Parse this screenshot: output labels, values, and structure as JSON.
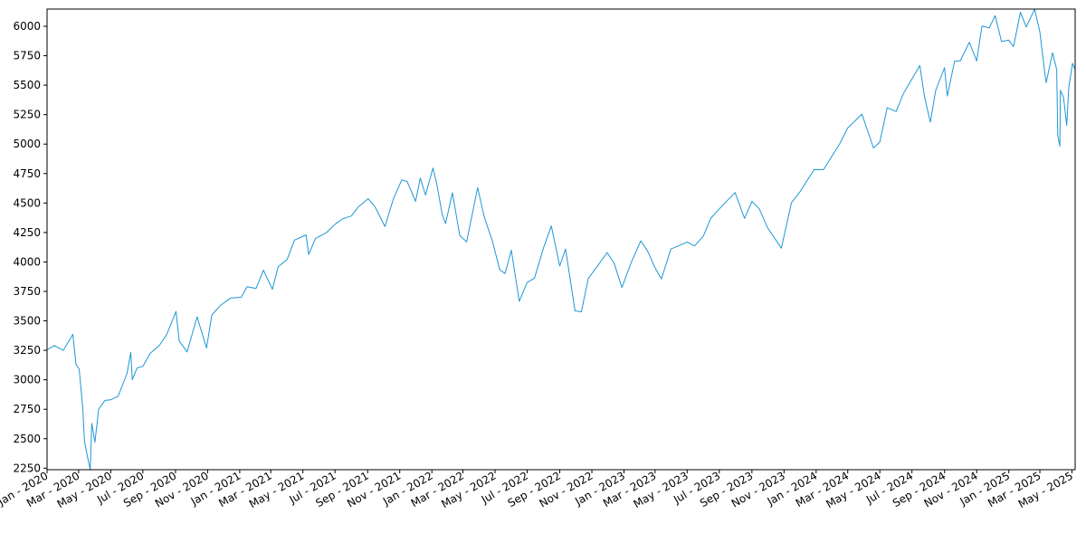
{
  "chart_data": {
    "type": "line",
    "title": "",
    "xlabel": "",
    "ylabel": "",
    "grid": false,
    "legend": "none",
    "color": "#1f96d6",
    "xlim": [
      "2020-01-01",
      "2025-05-07"
    ],
    "ylim": [
      2237,
      6146
    ],
    "yticks": [
      2250,
      2500,
      2750,
      3000,
      3250,
      3500,
      3750,
      4000,
      4250,
      4500,
      4750,
      5000,
      5250,
      5500,
      5750,
      6000
    ],
    "xticks": [
      {
        "date": "2020-01-01",
        "label": "Jan - 2020"
      },
      {
        "date": "2020-03-01",
        "label": "Mar - 2020"
      },
      {
        "date": "2020-05-01",
        "label": "May - 2020"
      },
      {
        "date": "2020-07-01",
        "label": "Jul - 2020"
      },
      {
        "date": "2020-09-01",
        "label": "Sep - 2020"
      },
      {
        "date": "2020-11-01",
        "label": "Nov - 2020"
      },
      {
        "date": "2021-01-01",
        "label": "Jan - 2021"
      },
      {
        "date": "2021-03-01",
        "label": "Mar - 2021"
      },
      {
        "date": "2021-05-01",
        "label": "May - 2021"
      },
      {
        "date": "2021-07-01",
        "label": "Jul - 2021"
      },
      {
        "date": "2021-09-01",
        "label": "Sep - 2021"
      },
      {
        "date": "2021-11-01",
        "label": "Nov - 2021"
      },
      {
        "date": "2022-01-01",
        "label": "Jan - 2022"
      },
      {
        "date": "2022-03-01",
        "label": "Mar - 2022"
      },
      {
        "date": "2022-05-01",
        "label": "May - 2022"
      },
      {
        "date": "2022-07-01",
        "label": "Jul - 2022"
      },
      {
        "date": "2022-09-01",
        "label": "Sep - 2022"
      },
      {
        "date": "2022-11-01",
        "label": "Nov - 2022"
      },
      {
        "date": "2023-01-01",
        "label": "Jan - 2023"
      },
      {
        "date": "2023-03-01",
        "label": "Mar - 2023"
      },
      {
        "date": "2023-05-01",
        "label": "May - 2023"
      },
      {
        "date": "2023-07-01",
        "label": "Jul - 2023"
      },
      {
        "date": "2023-09-01",
        "label": "Sep - 2023"
      },
      {
        "date": "2023-11-01",
        "label": "Nov - 2023"
      },
      {
        "date": "2024-01-01",
        "label": "Jan - 2024"
      },
      {
        "date": "2024-03-01",
        "label": "Mar - 2024"
      },
      {
        "date": "2024-05-01",
        "label": "May - 2024"
      },
      {
        "date": "2024-07-01",
        "label": "Jul - 2024"
      },
      {
        "date": "2024-09-01",
        "label": "Sep - 2024"
      },
      {
        "date": "2024-11-01",
        "label": "Nov - 2024"
      },
      {
        "date": "2025-01-01",
        "label": "Jan - 2025"
      },
      {
        "date": "2025-03-01",
        "label": "Mar - 2025"
      },
      {
        "date": "2025-05-01",
        "label": "May - 2025"
      }
    ],
    "series": [
      {
        "x": [
          "2020-01-02",
          "2020-01-15",
          "2020-02-01",
          "2020-02-19",
          "2020-02-25",
          "2020-03-02",
          "2020-03-09",
          "2020-03-12",
          "2020-03-16",
          "2020-03-23",
          "2020-03-26",
          "2020-04-01",
          "2020-04-08",
          "2020-04-20",
          "2020-05-01",
          "2020-05-15",
          "2020-06-01",
          "2020-06-08",
          "2020-06-11",
          "2020-06-20",
          "2020-07-01",
          "2020-07-15",
          "2020-08-01",
          "2020-08-15",
          "2020-09-02",
          "2020-09-08",
          "2020-09-23",
          "2020-10-12",
          "2020-10-30",
          "2020-11-09",
          "2020-11-25",
          "2020-12-15",
          "2021-01-04",
          "2021-01-15",
          "2021-02-01",
          "2021-02-15",
          "2021-03-04",
          "2021-03-15",
          "2021-04-01",
          "2021-04-15",
          "2021-05-07",
          "2021-05-12",
          "2021-05-25",
          "2021-06-15",
          "2021-07-01",
          "2021-07-15",
          "2021-08-01",
          "2021-08-15",
          "2021-09-02",
          "2021-09-15",
          "2021-10-04",
          "2021-10-20",
          "2021-11-05",
          "2021-11-15",
          "2021-12-01",
          "2021-12-10",
          "2021-12-20",
          "2022-01-03",
          "2022-01-10",
          "2022-01-21",
          "2022-01-27",
          "2022-02-09",
          "2022-02-23",
          "2022-03-08",
          "2022-03-29",
          "2022-04-10",
          "2022-04-26",
          "2022-05-10",
          "2022-05-20",
          "2022-06-01",
          "2022-06-16",
          "2022-07-01",
          "2022-07-15",
          "2022-08-01",
          "2022-08-16",
          "2022-09-01",
          "2022-09-12",
          "2022-09-30",
          "2022-10-12",
          "2022-10-25",
          "2022-11-10",
          "2022-11-30",
          "2022-12-13",
          "2022-12-28",
          "2023-01-15",
          "2023-02-02",
          "2023-02-15",
          "2023-03-01",
          "2023-03-13",
          "2023-03-31",
          "2023-04-15",
          "2023-05-01",
          "2023-05-15",
          "2023-06-01",
          "2023-06-15",
          "2023-07-01",
          "2023-07-31",
          "2023-08-18",
          "2023-09-01",
          "2023-09-15",
          "2023-10-01",
          "2023-10-27",
          "2023-11-15",
          "2023-12-01",
          "2023-12-28",
          "2024-01-15",
          "2024-02-01",
          "2024-02-15",
          "2024-03-01",
          "2024-03-28",
          "2024-04-19",
          "2024-05-01",
          "2024-05-15",
          "2024-06-01",
          "2024-06-15",
          "2024-07-16",
          "2024-07-25",
          "2024-08-05",
          "2024-08-15",
          "2024-09-01",
          "2024-09-06",
          "2024-09-20",
          "2024-10-01",
          "2024-10-18",
          "2024-11-01",
          "2024-11-11",
          "2024-11-25",
          "2024-12-06",
          "2024-12-18",
          "2025-01-01",
          "2025-01-10",
          "2025-01-23",
          "2025-02-03",
          "2025-02-19",
          "2025-03-01",
          "2025-03-10",
          "2025-03-13",
          "2025-03-25",
          "2025-04-02",
          "2025-04-04",
          "2025-04-08",
          "2025-04-09",
          "2025-04-15",
          "2025-04-21",
          "2025-04-25",
          "2025-05-02",
          "2025-05-07"
        ],
        "y": [
          3258,
          3290,
          3250,
          3386,
          3130,
          3090,
          2746,
          2480,
          2386,
          2237,
          2630,
          2470,
          2750,
          2825,
          2830,
          2860,
          3055,
          3232,
          3000,
          3100,
          3115,
          3225,
          3290,
          3380,
          3580,
          3330,
          3236,
          3534,
          3270,
          3550,
          3630,
          3695,
          3700,
          3790,
          3775,
          3930,
          3768,
          3960,
          4020,
          4185,
          4230,
          4063,
          4200,
          4250,
          4320,
          4365,
          4390,
          4470,
          4536,
          4468,
          4300,
          4536,
          4697,
          4682,
          4513,
          4712,
          4568,
          4796,
          4670,
          4398,
          4326,
          4587,
          4225,
          4170,
          4631,
          4390,
          4175,
          3935,
          3901,
          4100,
          3666,
          3825,
          3863,
          4118,
          4305,
          3966,
          4110,
          3585,
          3577,
          3860,
          3956,
          4080,
          3990,
          3783,
          3999,
          4179,
          4090,
          3950,
          3855,
          4109,
          4137,
          4169,
          4136,
          4221,
          4372,
          4450,
          4589,
          4370,
          4515,
          4450,
          4288,
          4117,
          4502,
          4594,
          4783,
          4783,
          4906,
          5005,
          5137,
          5254,
          4967,
          5018,
          5308,
          5277,
          5431,
          5667,
          5399,
          5186,
          5455,
          5648,
          5408,
          5702,
          5708,
          5864,
          5705,
          6001,
          5987,
          6090,
          5872,
          5882,
          5827,
          6118,
          5994,
          6144,
          5954,
          5614,
          5521,
          5776,
          5634,
          5074,
          4982,
          5456,
          5396,
          5158,
          5484,
          5686,
          5631
        ]
      }
    ]
  }
}
